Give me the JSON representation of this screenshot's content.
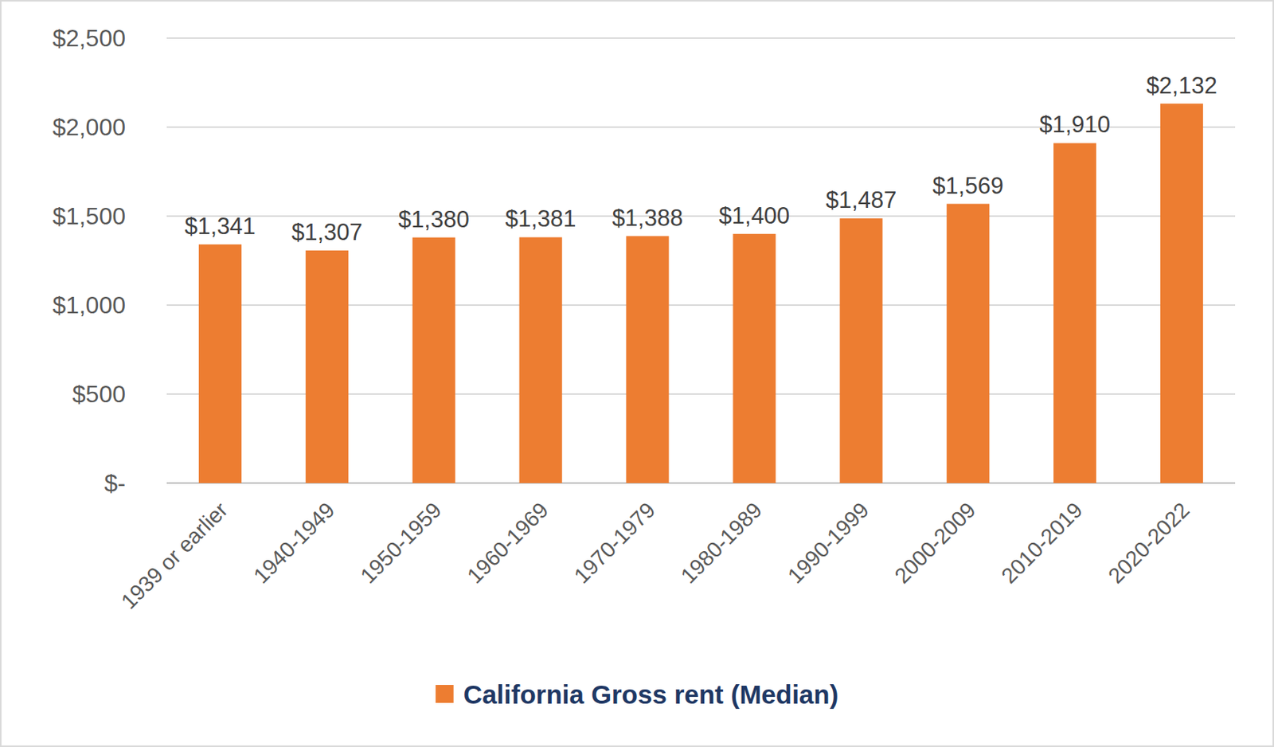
{
  "chart_data": {
    "type": "bar",
    "categories": [
      "1939 or earlier",
      "1940-1949",
      "1950-1959",
      "1960-1969",
      "1970-1979",
      "1980-1989",
      "1990-1999",
      "2000-2009",
      "2010-2019",
      "2020-2022"
    ],
    "series": [
      {
        "name": "California Gross rent (Median)",
        "color": "#ed7d31",
        "values": [
          1341,
          1307,
          1380,
          1381,
          1388,
          1400,
          1487,
          1569,
          1910,
          2132
        ],
        "value_labels": [
          "$1,341",
          "$1,307",
          "$1,380",
          "$1,381",
          "$1,388",
          "$1,400",
          "$1,487",
          "$1,569",
          "$1,910",
          "$2,132"
        ]
      }
    ],
    "ylim": [
      0,
      2500
    ],
    "yticks": [
      {
        "value": 0,
        "label": "$-"
      },
      {
        "value": 500,
        "label": "$500"
      },
      {
        "value": 1000,
        "label": "$1,000"
      },
      {
        "value": 1500,
        "label": "$1,500"
      },
      {
        "value": 2000,
        "label": "$2,000"
      },
      {
        "value": 2500,
        "label": "$2,500"
      }
    ],
    "grid": true,
    "data_labels": true,
    "legend": "bottom"
  }
}
